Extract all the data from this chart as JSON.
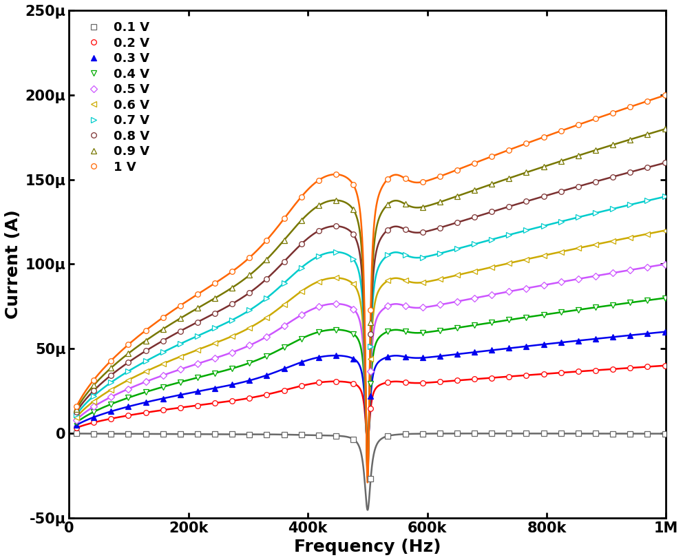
{
  "series": [
    {
      "label": "0.1 V",
      "color": "#696969",
      "marker": "s",
      "mfc": "white",
      "voltage": 0.1
    },
    {
      "label": "0.2 V",
      "color": "#ff0000",
      "marker": "o",
      "mfc": "white",
      "voltage": 0.2
    },
    {
      "label": "0.3 V",
      "color": "#0000ee",
      "marker": "^",
      "mfc": "#0000ee",
      "voltage": 0.3
    },
    {
      "label": "0.4 V",
      "color": "#00aa00",
      "marker": "v",
      "mfc": "white",
      "voltage": 0.4
    },
    {
      "label": "0.5 V",
      "color": "#cc55ff",
      "marker": "D",
      "mfc": "white",
      "voltage": 0.5
    },
    {
      "label": "0.6 V",
      "color": "#ccaa00",
      "marker": "<",
      "mfc": "white",
      "voltage": 0.6
    },
    {
      "label": "0.7 V",
      "color": "#00cccc",
      "marker": ">",
      "mfc": "white",
      "voltage": 0.7
    },
    {
      "label": "0.8 V",
      "color": "#7b3030",
      "marker": "o",
      "mfc": "white",
      "voltage": 0.8
    },
    {
      "label": "0.9 V",
      "color": "#777700",
      "marker": "^",
      "mfc": "white",
      "voltage": 0.9
    },
    {
      "label": "1 V",
      "color": "#ff6600",
      "marker": "o",
      "mfc": "white",
      "voltage": 1.0
    }
  ],
  "xmin": 10000,
  "xmax": 1000000,
  "ymin": -5e-05,
  "ymax": 0.00025,
  "xlabel": "Frequency (Hz)",
  "ylabel": "Current (A)",
  "f_res": 460000,
  "f_anti": 500000,
  "background_color": "#ffffff",
  "label_fontsize": 18,
  "tick_fontsize": 15,
  "legend_fontsize": 13,
  "n_markers": 35
}
